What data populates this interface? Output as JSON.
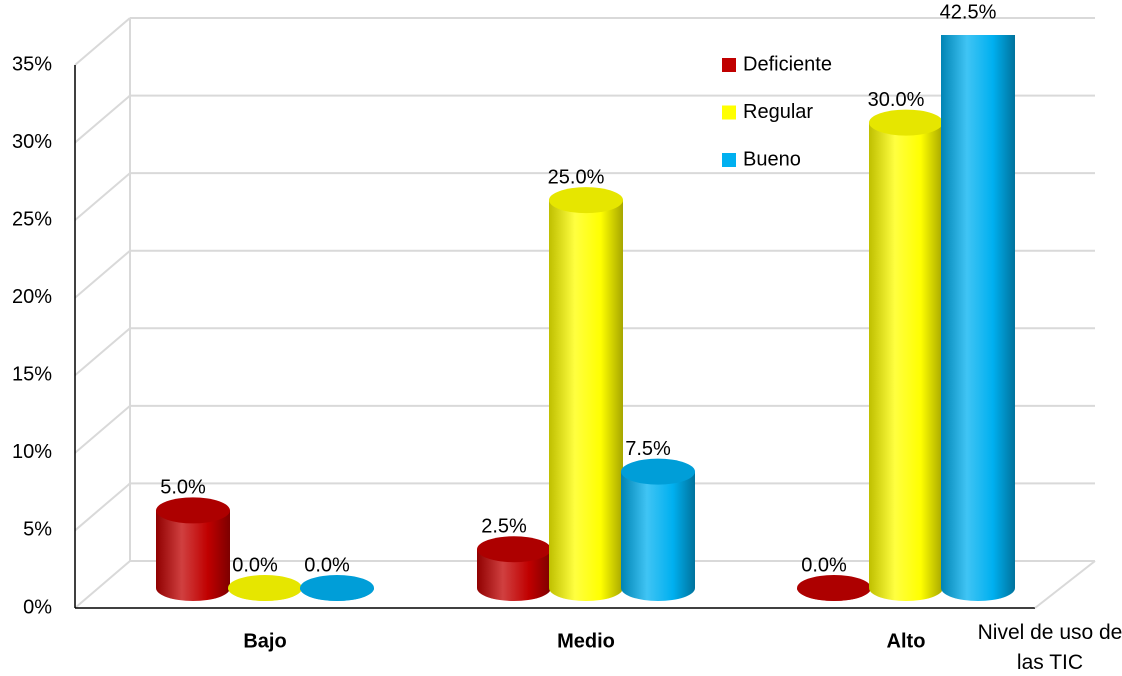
{
  "chart_data": {
    "type": "bar",
    "categories": [
      "Bajo",
      "Medio",
      "Alto"
    ],
    "x_label": "Nivel de uso de las TIC",
    "series": [
      {
        "name": "Deficiente",
        "color": "#c00000",
        "values": [
          5.0,
          2.5,
          0.0
        ],
        "value_labels": [
          "5.0%",
          "2.5%",
          "0.0%"
        ]
      },
      {
        "name": "Regular",
        "color": "#ffff00",
        "values": [
          0.0,
          25.0,
          30.0
        ],
        "value_labels": [
          "0.0%",
          "25.0%",
          "30.0%"
        ]
      },
      {
        "name": "Bueno",
        "color": "#00b0f0",
        "values": [
          0.0,
          7.5,
          42.5
        ],
        "value_labels": [
          "0.0%",
          "7.5%",
          "42.5%"
        ]
      }
    ],
    "ylim": [
      0,
      35
    ],
    "yticks": [
      {
        "value": 0,
        "label": "0%"
      },
      {
        "value": 5,
        "label": "5%"
      },
      {
        "value": 10,
        "label": "10%"
      },
      {
        "value": 15,
        "label": "15%"
      },
      {
        "value": 20,
        "label": "20%"
      },
      {
        "value": 25,
        "label": "25%"
      },
      {
        "value": 30,
        "label": "30%"
      },
      {
        "value": 35,
        "label": "35%"
      }
    ],
    "grid": true
  }
}
